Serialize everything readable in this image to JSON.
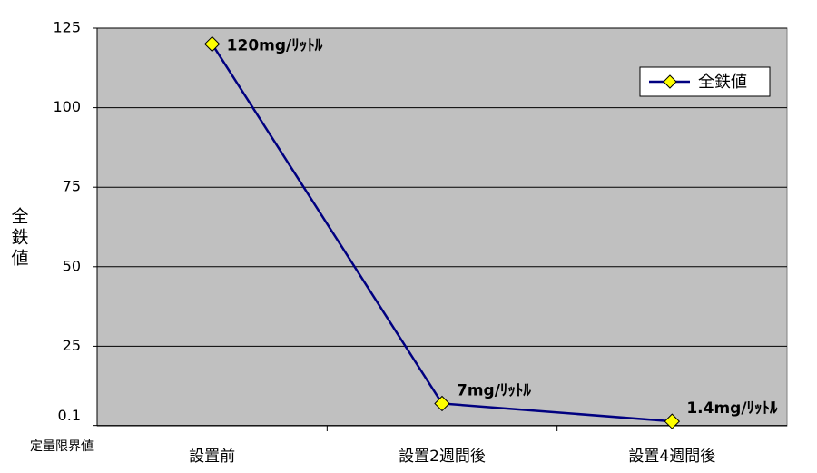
{
  "chart_data": {
    "type": "line",
    "y_label": "全鉄値",
    "annotation": "定量限界値",
    "categories": [
      "設置前",
      "設置2週間後",
      "設置4週間後"
    ],
    "series": [
      {
        "name": "全鉄値",
        "color": "#000080",
        "marker_color": "#ffff00",
        "values": [
          120,
          7,
          1.4
        ],
        "value_labels": [
          "120mg/ﾘｯﾄﾙ",
          "7mg/ﾘｯﾄﾙ",
          "1.4mg/ﾘｯﾄﾙ"
        ]
      }
    ],
    "ylim": [
      0,
      125
    ],
    "yticks": [
      0.1,
      25,
      50,
      75,
      100,
      125
    ],
    "grid": true,
    "legend": "upper right",
    "plot_background": "#c0c0c0"
  }
}
